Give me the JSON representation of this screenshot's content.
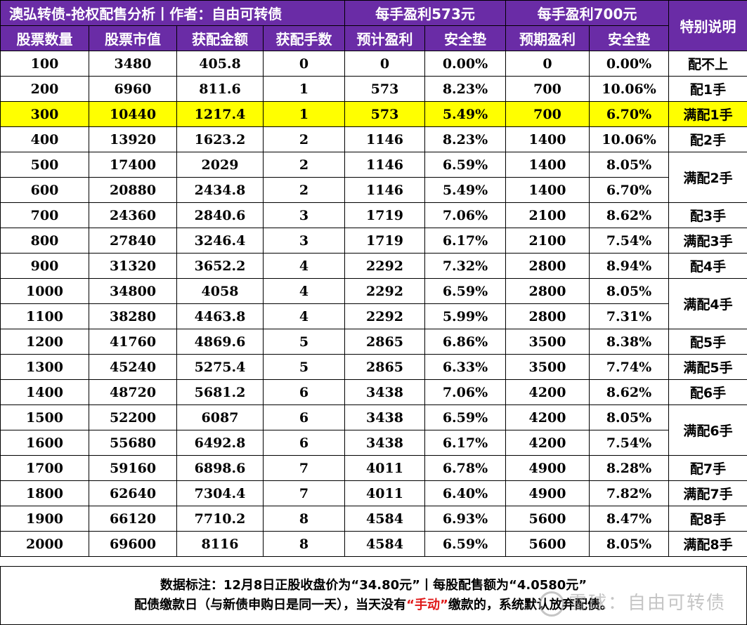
{
  "header": {
    "title": "澳弘转债-抢权配售分析丨作者：自由可转债",
    "group_573": "每手盈利573元",
    "group_700": "每手盈利700元",
    "special": "特别说明",
    "columns": [
      "股票数量",
      "股票市值",
      "获配金额",
      "获配手数",
      "预计盈利",
      "安全垫",
      "预期盈利",
      "安全垫"
    ]
  },
  "rows": [
    [
      "100",
      "3480",
      "405.8",
      "0",
      "0",
      "0.00%",
      "0",
      "0.00%"
    ],
    [
      "200",
      "6960",
      "811.6",
      "1",
      "573",
      "8.23%",
      "700",
      "10.06%"
    ],
    [
      "300",
      "10440",
      "1217.4",
      "1",
      "573",
      "5.49%",
      "700",
      "6.70%"
    ],
    [
      "400",
      "13920",
      "1623.2",
      "2",
      "1146",
      "8.23%",
      "1400",
      "10.06%"
    ],
    [
      "500",
      "17400",
      "2029",
      "2",
      "1146",
      "6.59%",
      "1400",
      "8.05%"
    ],
    [
      "600",
      "20880",
      "2434.8",
      "2",
      "1146",
      "5.49%",
      "1400",
      "6.70%"
    ],
    [
      "700",
      "24360",
      "2840.6",
      "3",
      "1719",
      "7.06%",
      "2100",
      "8.62%"
    ],
    [
      "800",
      "27840",
      "3246.4",
      "3",
      "1719",
      "6.17%",
      "2100",
      "7.54%"
    ],
    [
      "900",
      "31320",
      "3652.2",
      "4",
      "2292",
      "7.32%",
      "2800",
      "8.94%"
    ],
    [
      "1000",
      "34800",
      "4058",
      "4",
      "2292",
      "6.59%",
      "2800",
      "8.05%"
    ],
    [
      "1100",
      "38280",
      "4463.8",
      "4",
      "2292",
      "5.99%",
      "2800",
      "7.31%"
    ],
    [
      "1200",
      "41760",
      "4869.6",
      "5",
      "2865",
      "6.86%",
      "3500",
      "8.38%"
    ],
    [
      "1300",
      "45240",
      "5275.4",
      "5",
      "2865",
      "6.33%",
      "3500",
      "7.74%"
    ],
    [
      "1400",
      "48720",
      "5681.2",
      "6",
      "3438",
      "7.06%",
      "4200",
      "8.62%"
    ],
    [
      "1500",
      "52200",
      "6087",
      "6",
      "3438",
      "6.59%",
      "4200",
      "8.05%"
    ],
    [
      "1600",
      "55680",
      "6492.8",
      "6",
      "3438",
      "6.17%",
      "4200",
      "7.54%"
    ],
    [
      "1700",
      "59160",
      "6898.6",
      "7",
      "4011",
      "6.78%",
      "4900",
      "8.28%"
    ],
    [
      "1800",
      "62640",
      "7304.4",
      "7",
      "4011",
      "6.40%",
      "4900",
      "7.82%"
    ],
    [
      "1900",
      "66120",
      "7710.2",
      "8",
      "4584",
      "6.93%",
      "5600",
      "8.47%"
    ],
    [
      "2000",
      "69600",
      "8116",
      "8",
      "4584",
      "6.59%",
      "5600",
      "8.05%"
    ]
  ],
  "highlight_row": 2,
  "highlight_color": "#ffff00",
  "header_color": "#6a2ca6",
  "notes": [
    {
      "text": "配不上",
      "row": 0,
      "span": 1
    },
    {
      "text": "配1手",
      "row": 1,
      "span": 1
    },
    {
      "text": "满配1手",
      "row": 2,
      "span": 1
    },
    {
      "text": "配2手",
      "row": 3,
      "span": 1
    },
    {
      "text": "满配2手",
      "row": 4,
      "span": 2
    },
    {
      "text": "配3手",
      "row": 6,
      "span": 1
    },
    {
      "text": "满配3手",
      "row": 7,
      "span": 1
    },
    {
      "text": "配4手",
      "row": 8,
      "span": 1
    },
    {
      "text": "满配4手",
      "row": 9,
      "span": 2
    },
    {
      "text": "配5手",
      "row": 11,
      "span": 1
    },
    {
      "text": "满配5手",
      "row": 12,
      "span": 1
    },
    {
      "text": "配6手",
      "row": 13,
      "span": 1
    },
    {
      "text": "满配6手",
      "row": 14,
      "span": 2
    },
    {
      "text": "配7手",
      "row": 16,
      "span": 1
    },
    {
      "text": "满配7手",
      "row": 17,
      "span": 1
    },
    {
      "text": "配8手",
      "row": 18,
      "span": 1
    },
    {
      "text": "满配8手",
      "row": 19,
      "span": 1
    }
  ],
  "footer": {
    "line1": "数据标注：12月8日正股收盘价为“34.80元”丨每股配售额为“4.0580元”",
    "line2_prefix": "配债缴款日（与新债申购日是同一天），当天没有",
    "line2_red": "“手动”",
    "line2_suffix": "缴款的，系统默认放弃配债。",
    "red_color": "#e01818"
  },
  "watermark": "雪球：自由可转债"
}
